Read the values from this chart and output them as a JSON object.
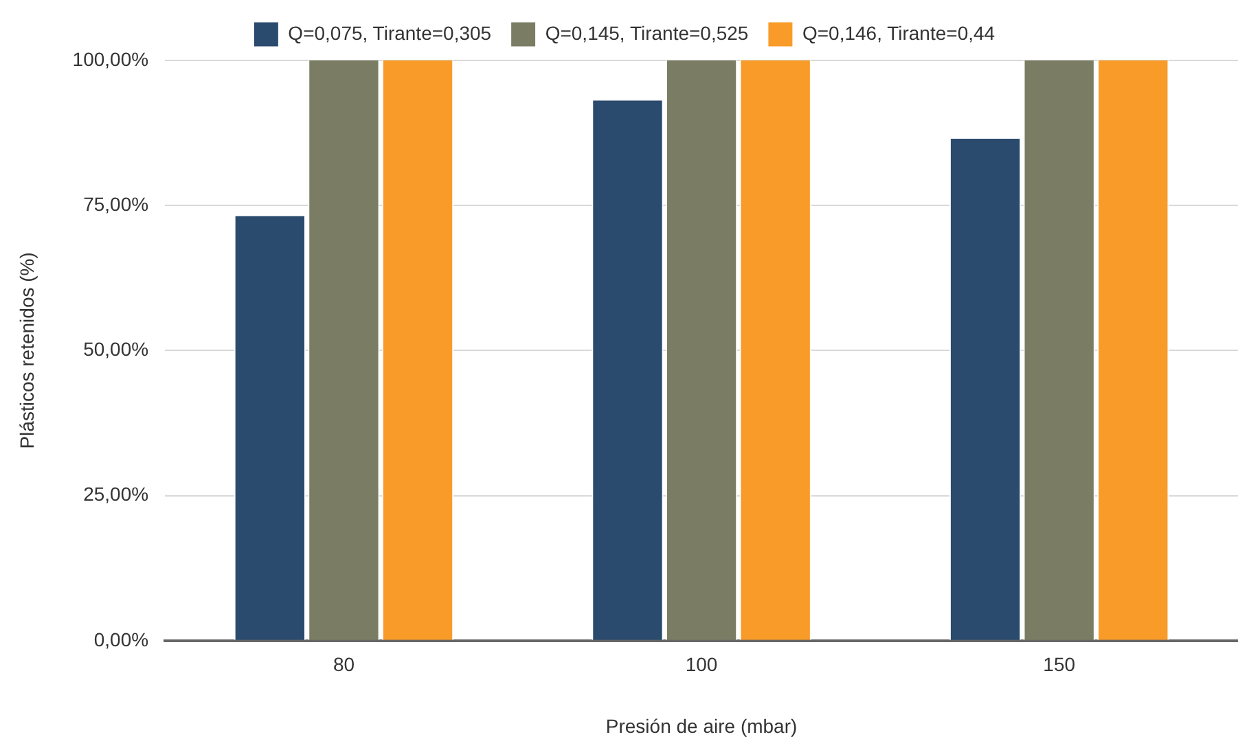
{
  "chart_data": {
    "type": "bar",
    "xlabel": "Presión de aire (mbar)",
    "ylabel": "Plásticos retenidos (%)",
    "categories": [
      "80",
      "100",
      "150"
    ],
    "series": [
      {
        "name": "Q=0,075, Tirante=0,305",
        "color": "#2a4a6e",
        "values": [
          73.2,
          93.1,
          86.5
        ]
      },
      {
        "name": "Q=0,145, Tirante=0,525",
        "color": "#7a7d63",
        "values": [
          100,
          100,
          100
        ]
      },
      {
        "name": "Q=0,146, Tirante=0,44",
        "color": "#f99b28",
        "values": [
          100,
          100,
          100
        ]
      }
    ],
    "ylim": [
      0,
      100
    ],
    "yticks": [
      {
        "value": 0,
        "label": "0,00%"
      },
      {
        "value": 25,
        "label": "25,00%"
      },
      {
        "value": 50,
        "label": "50,00%"
      },
      {
        "value": 75,
        "label": "75,00%"
      },
      {
        "value": 100,
        "label": "100,00%"
      }
    ],
    "grid": "y",
    "legend": "top"
  }
}
